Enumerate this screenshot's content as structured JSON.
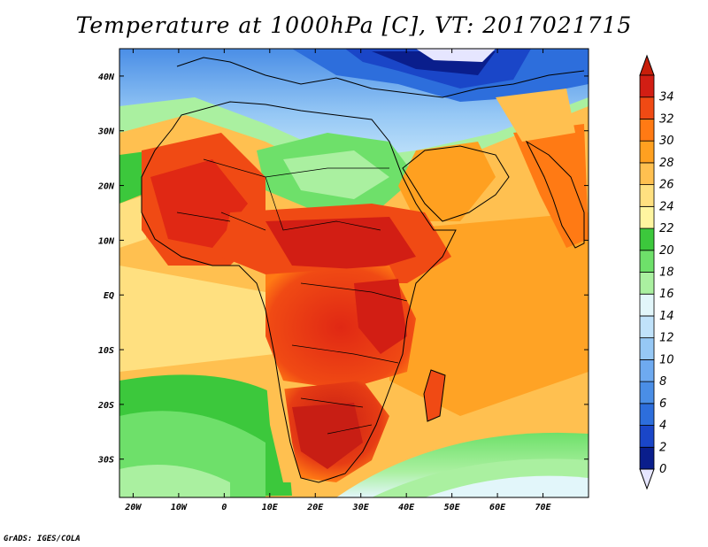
{
  "title": "Temperature at 1000hPa [C], VT: 2017021715",
  "credit": "GrADS: IGES/COLA",
  "map": {
    "lon_range": [
      -23,
      80
    ],
    "lat_range": [
      -37,
      45
    ],
    "lon_ticks": [
      {
        "lon": -20,
        "label": "20W"
      },
      {
        "lon": -10,
        "label": "10W"
      },
      {
        "lon": 0,
        "label": "0"
      },
      {
        "lon": 10,
        "label": "10E"
      },
      {
        "lon": 20,
        "label": "20E"
      },
      {
        "lon": 30,
        "label": "30E"
      },
      {
        "lon": 40,
        "label": "40E"
      },
      {
        "lon": 50,
        "label": "50E"
      },
      {
        "lon": 60,
        "label": "60E"
      },
      {
        "lon": 70,
        "label": "70E"
      }
    ],
    "lat_ticks": [
      {
        "lat": 40,
        "label": "40N"
      },
      {
        "lat": 30,
        "label": "30N"
      },
      {
        "lat": 20,
        "label": "20N"
      },
      {
        "lat": 10,
        "label": "10N"
      },
      {
        "lat": 0,
        "label": "EQ"
      },
      {
        "lat": -10,
        "label": "10S"
      },
      {
        "lat": -20,
        "label": "20S"
      },
      {
        "lat": -30,
        "label": "30S"
      }
    ]
  },
  "colorbar": {
    "levels": [
      "0",
      "2",
      "4",
      "6",
      "8",
      "10",
      "12",
      "14",
      "16",
      "18",
      "20",
      "22",
      "24",
      "26",
      "28",
      "30",
      "32",
      "34"
    ],
    "colors": [
      "#0a1e8c",
      "#1a46c8",
      "#2d6edc",
      "#4a8ee6",
      "#6eaaf0",
      "#96c8f5",
      "#c0e2fa",
      "#e2f6fa",
      "#aaf0a0",
      "#6ee06a",
      "#3cc83c",
      "#fff5a0",
      "#ffe080",
      "#ffc050",
      "#ffa020",
      "#ff7a14",
      "#f04a14",
      "#d21e14"
    ],
    "under_color": "#e6e6ff",
    "over_color": "#c81e0a"
  }
}
